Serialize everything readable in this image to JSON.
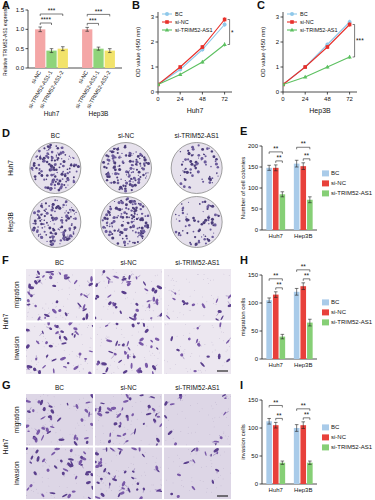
{
  "chart_data": [
    {
      "panel": "A",
      "type": "bar",
      "y_label": "Relative TRIM52-AS1 expression",
      "categories": [
        "Huh7",
        "Hep3B"
      ],
      "series": [
        {
          "name": "si-NC",
          "color": "#f4a6a6",
          "values": [
            1.0,
            1.0
          ],
          "errors": [
            0.06,
            0.05
          ]
        },
        {
          "name": "si-TRIM52-AS1-1",
          "color": "#8fd47a",
          "values": [
            0.45,
            0.5
          ],
          "errors": [
            0.05,
            0.04
          ]
        },
        {
          "name": "si-TRIM52-AS1-2",
          "color": "#f2e36b",
          "values": [
            0.5,
            0.45
          ],
          "errors": [
            0.05,
            0.05
          ]
        }
      ],
      "ylim": [
        0,
        1.5
      ],
      "yticks": [
        {
          "value": 0,
          "label": "0.0"
        },
        0.5,
        {
          "value": 1,
          "label": "1.0"
        },
        1.5
      ],
      "annotations": [
        {
          "text": "****",
          "category": "Huh7",
          "pair": [
            "si-NC",
            "si-TRIM52-AS1-1"
          ]
        },
        {
          "text": "***",
          "category": "Huh7",
          "pair": [
            "si-NC",
            "si-TRIM52-AS1-2"
          ]
        },
        {
          "text": "***",
          "category": "Hep3B",
          "pair": [
            "si-NC",
            "si-TRIM52-AS1-1"
          ]
        },
        {
          "text": "***",
          "category": "Hep3B",
          "pair": [
            "si-NC",
            "si-TRIM52-AS1-2"
          ]
        }
      ]
    },
    {
      "panel": "B",
      "type": "line",
      "title": "Huh7",
      "y_label": "OD value (450 nm)",
      "x": [
        0,
        24,
        48,
        72
      ],
      "xlim": [
        0,
        80
      ],
      "xticks": [
        0,
        24,
        48,
        72
      ],
      "ylim": [
        0,
        3.2
      ],
      "yticks": [
        0,
        1,
        2,
        3
      ],
      "legend": "upper left",
      "series": [
        {
          "name": "BC",
          "color": "#8ec8ea",
          "marker": "circle",
          "values": [
            0.3,
            0.9,
            1.7,
            2.7
          ],
          "errors": [
            0.03,
            0.06,
            0.08,
            0.1
          ]
        },
        {
          "name": "si-NC",
          "color": "#e8302a",
          "marker": "square",
          "values": [
            0.3,
            1.0,
            1.8,
            2.9
          ],
          "errors": [
            0.03,
            0.06,
            0.08,
            0.1
          ]
        },
        {
          "name": "si-TRIM52-AS1",
          "color": "#5cc060",
          "marker": "triangle",
          "values": [
            0.3,
            0.7,
            1.2,
            1.9
          ],
          "errors": [
            0.03,
            0.05,
            0.07,
            0.09
          ]
        }
      ],
      "annotations": [
        {
          "text": "*",
          "x": 72,
          "pair": [
            "si-NC",
            "si-TRIM52-AS1"
          ]
        }
      ]
    },
    {
      "panel": "C",
      "type": "line",
      "title": "Hep3B",
      "y_label": "OD value (450 nm)",
      "x": [
        0,
        24,
        48,
        72
      ],
      "xlim": [
        0,
        80
      ],
      "xticks": [
        0,
        24,
        48,
        72
      ],
      "ylim": [
        0,
        3.2
      ],
      "yticks": [
        0,
        1,
        2,
        3
      ],
      "legend": "upper left",
      "series": [
        {
          "name": "BC",
          "color": "#8ec8ea",
          "marker": "circle",
          "values": [
            0.3,
            1.0,
            1.9,
            2.8
          ],
          "errors": [
            0.03,
            0.06,
            0.08,
            0.1
          ]
        },
        {
          "name": "si-NC",
          "color": "#e8302a",
          "marker": "square",
          "values": [
            0.3,
            1.0,
            1.8,
            2.7
          ],
          "errors": [
            0.03,
            0.06,
            0.08,
            0.1
          ]
        },
        {
          "name": "si-TRIM52-AS1",
          "color": "#5cc060",
          "marker": "triangle",
          "values": [
            0.3,
            0.6,
            1.0,
            1.4
          ],
          "errors": [
            0.03,
            0.05,
            0.06,
            0.08
          ]
        }
      ],
      "annotations": [
        {
          "text": "***",
          "x": 72,
          "pair": [
            "si-NC",
            "si-TRIM52-AS1"
          ]
        }
      ]
    },
    {
      "panel": "E",
      "type": "bar",
      "y_label": "Number of cell colonies",
      "categories": [
        "Huh7",
        "Hep3B"
      ],
      "legend": "right",
      "series": [
        {
          "name": "BC",
          "color": "#a9cbe9",
          "values": [
            148,
            158
          ],
          "errors": [
            6,
            8
          ]
        },
        {
          "name": "si-NC",
          "color": "#e8413b",
          "values": [
            148,
            152
          ],
          "errors": [
            7,
            8
          ]
        },
        {
          "name": "si-TRIM52-AS1",
          "color": "#86cf76",
          "values": [
            85,
            72
          ],
          "errors": [
            6,
            7
          ]
        }
      ],
      "ylim": [
        0,
        200
      ],
      "yticks": [
        0,
        50,
        100,
        150,
        200
      ],
      "annotations": [
        {
          "text": "**",
          "category": "Huh7",
          "pair": [
            "si-NC",
            "si-TRIM52-AS1"
          ]
        },
        {
          "text": "**",
          "category": "Huh7",
          "pair": [
            "BC",
            "si-TRIM52-AS1"
          ]
        },
        {
          "text": "**",
          "category": "Hep3B",
          "pair": [
            "si-NC",
            "si-TRIM52-AS1"
          ]
        },
        {
          "text": "**",
          "category": "Hep3B",
          "pair": [
            "BC",
            "si-TRIM52-AS1"
          ]
        }
      ]
    },
    {
      "panel": "H",
      "type": "bar",
      "y_label": "migration cells",
      "categories": [
        "Huh7",
        "Hep3B"
      ],
      "legend": "right",
      "series": [
        {
          "name": "BC",
          "color": "#a9cbe9",
          "values": [
            105,
            120
          ],
          "errors": [
            4,
            6
          ]
        },
        {
          "name": "si-NC",
          "color": "#e8413b",
          "values": [
            115,
            130
          ],
          "errors": [
            5,
            6
          ]
        },
        {
          "name": "si-TRIM52-AS1",
          "color": "#86cf76",
          "values": [
            40,
            65
          ],
          "errors": [
            4,
            6
          ]
        }
      ],
      "ylim": [
        0,
        150
      ],
      "yticks": [
        0,
        50,
        100,
        150
      ],
      "annotations": [
        {
          "text": "**",
          "category": "Huh7",
          "pair": [
            "si-NC",
            "si-TRIM52-AS1"
          ]
        },
        {
          "text": "**",
          "category": "Huh7",
          "pair": [
            "BC",
            "si-TRIM52-AS1"
          ]
        },
        {
          "text": "**",
          "category": "Hep3B",
          "pair": [
            "si-NC",
            "si-TRIM52-AS1"
          ]
        },
        {
          "text": "**",
          "category": "Hep3B",
          "pair": [
            "BC",
            "si-TRIM52-AS1"
          ]
        }
      ]
    },
    {
      "panel": "I",
      "type": "bar",
      "y_label": "invasion cells",
      "categories": [
        "Huh7",
        "Hep3B"
      ],
      "legend": "right",
      "series": [
        {
          "name": "BC",
          "color": "#a9cbe9",
          "values": [
            112,
            100
          ],
          "errors": [
            5,
            6
          ]
        },
        {
          "name": "si-NC",
          "color": "#e8413b",
          "values": [
            105,
            105
          ],
          "errors": [
            5,
            6
          ]
        },
        {
          "name": "si-TRIM52-AS1",
          "color": "#86cf76",
          "values": [
            38,
            38
          ],
          "errors": [
            3,
            3
          ]
        }
      ],
      "ylim": [
        0,
        150
      ],
      "yticks": [
        0,
        50,
        100,
        150
      ],
      "annotations": [
        {
          "text": "**",
          "category": "Huh7",
          "pair": [
            "si-NC",
            "si-TRIM52-AS1"
          ]
        },
        {
          "text": "**",
          "category": "Huh7",
          "pair": [
            "BC",
            "si-TRIM52-AS1"
          ]
        },
        {
          "text": "**",
          "category": "Hep3B",
          "pair": [
            "si-NC",
            "si-TRIM52-AS1"
          ]
        },
        {
          "text": "**",
          "category": "Hep3B",
          "pair": [
            "BC",
            "si-TRIM52-AS1"
          ]
        }
      ]
    }
  ],
  "image_panels": [
    {
      "panel": "D",
      "columns": [
        "BC",
        "si-NC",
        "si-TRIM52-AS1"
      ],
      "rows": [
        "Huh7",
        "Hep3B"
      ]
    },
    {
      "panel": "F",
      "columns": [
        "BC",
        "si-NC",
        "si-TRIM52-AS1"
      ],
      "side_label": "Huh7",
      "rows": [
        "migration",
        "invasion"
      ]
    },
    {
      "panel": "G",
      "columns": [
        "BC",
        "si-NC",
        "si-TRIM52-AS1"
      ],
      "side_label": "Huh7",
      "rows": [
        "migration",
        "invasion"
      ]
    }
  ]
}
